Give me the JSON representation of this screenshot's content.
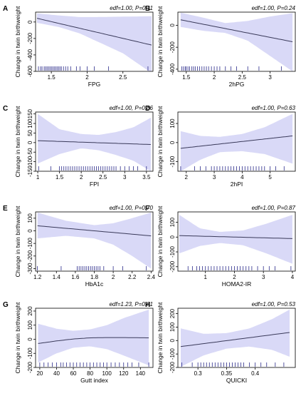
{
  "figure": {
    "ylabel": "Change in twin birthweight",
    "band_color": "#d9d9f7",
    "line_color": "#3a3a5a",
    "rug_color": "#2b2b8a"
  },
  "chart_data": [
    {
      "panel": "A",
      "type": "line",
      "stat": "edf=1.00, P=0.11",
      "xlabel": "FPG",
      "ylabel": "Change in twin birthweight",
      "xlim": [
        1.28,
        2.92
      ],
      "ylim": [
        -600,
        120
      ],
      "xticks": [
        1.5,
        2.0,
        2.5
      ],
      "yticks": [
        -600,
        -400,
        -200,
        0
      ],
      "fit": {
        "x": [
          1.3,
          2.9
        ],
        "y": [
          45,
          -280
        ]
      },
      "band": {
        "x": [
          1.3,
          1.6,
          1.9,
          2.1,
          2.5,
          2.9
        ],
        "upper": [
          105,
          80,
          60,
          60,
          65,
          70
        ],
        "lower": [
          -10,
          -60,
          -140,
          -220,
          -380,
          -620
        ]
      },
      "rug": [
        1.32,
        1.35,
        1.37,
        1.4,
        1.42,
        1.44,
        1.46,
        1.48,
        1.5,
        1.52,
        1.54,
        1.56,
        1.58,
        1.6,
        1.62,
        1.64,
        1.67,
        1.7,
        1.73,
        1.77,
        1.85,
        1.9,
        2.0,
        2.1,
        2.3,
        2.85
      ]
    },
    {
      "panel": "B",
      "type": "line",
      "stat": "edf=1.00, P=0.24",
      "xlabel": "2hPG",
      "ylabel": "Change in twin birthweight",
      "xlim": [
        1.35,
        3.45
      ],
      "ylim": [
        -420,
        120
      ],
      "xticks": [
        1.5,
        2.0,
        2.5,
        3.0
      ],
      "yticks": [
        -400,
        -200,
        0
      ],
      "fit": {
        "x": [
          1.4,
          3.4
        ],
        "y": [
          50,
          -150
        ]
      },
      "band": {
        "x": [
          1.4,
          1.8,
          2.2,
          2.6,
          3.0,
          3.4
        ],
        "upper": [
          115,
          70,
          20,
          40,
          80,
          110
        ],
        "lower": [
          -15,
          -50,
          -70,
          -140,
          -280,
          -420
        ]
      },
      "rug": [
        1.42,
        1.45,
        1.48,
        1.5,
        1.53,
        1.56,
        1.6,
        1.63,
        1.66,
        1.7,
        1.74,
        1.78,
        1.82,
        1.86,
        1.9,
        1.95,
        2.0,
        2.05,
        2.1,
        2.2,
        2.3,
        2.4,
        2.6,
        2.8,
        3.2
      ]
    },
    {
      "panel": "C",
      "type": "line",
      "stat": "edf=1.00, P=0.86",
      "xlabel": "FPI",
      "ylabel": "Change in twin birthweight",
      "xlim": [
        0.95,
        3.65
      ],
      "ylim": [
        -150,
        160
      ],
      "xticks": [
        1.0,
        1.5,
        2.0,
        2.5,
        3.0,
        3.5
      ],
      "yticks": [
        -150,
        -100,
        -50,
        0,
        50,
        100,
        150
      ],
      "fit": {
        "x": [
          1.0,
          3.6
        ],
        "y": [
          10,
          -10
        ]
      },
      "band": {
        "x": [
          1.0,
          1.5,
          2.0,
          2.4,
          2.8,
          3.2,
          3.6
        ],
        "upper": [
          150,
          70,
          45,
          40,
          55,
          80,
          130
        ],
        "lower": [
          -110,
          -60,
          -30,
          -40,
          -65,
          -95,
          -150
        ]
      },
      "rug": [
        1.02,
        1.3,
        1.5,
        1.55,
        1.6,
        1.65,
        1.7,
        1.75,
        1.8,
        1.85,
        1.9,
        1.95,
        2.0,
        2.05,
        2.1,
        2.15,
        2.2,
        2.25,
        2.3,
        2.35,
        2.4,
        2.45,
        2.5,
        2.55,
        2.6,
        2.65,
        2.7,
        2.75,
        2.8,
        2.9,
        3.0,
        3.1,
        3.2,
        3.3,
        3.5
      ]
    },
    {
      "panel": "D",
      "type": "line",
      "stat": "edf=1.00, P=0.63",
      "xlabel": "2hPI",
      "ylabel": "Change in twin birthweight",
      "xlim": [
        1.7,
        5.9
      ],
      "ylim": [
        -150,
        160
      ],
      "xticks": [
        2,
        3,
        4,
        5
      ],
      "yticks": [
        -100,
        0,
        100
      ],
      "fit": {
        "x": [
          1.8,
          5.8
        ],
        "y": [
          -30,
          35
        ]
      },
      "band": {
        "x": [
          1.8,
          2.5,
          3.2,
          4.0,
          4.8,
          5.8
        ],
        "upper": [
          60,
          35,
          30,
          45,
          80,
          150
        ],
        "lower": [
          -150,
          -90,
          -50,
          -45,
          -60,
          -110
        ]
      },
      "rug": [
        1.8,
        2.3,
        2.5,
        2.7,
        2.9,
        3.0,
        3.1,
        3.2,
        3.3,
        3.4,
        3.5,
        3.6,
        3.7,
        3.8,
        3.9,
        4.0,
        4.1,
        4.2,
        4.3,
        4.4,
        4.5,
        4.6,
        4.7,
        4.8,
        5.0,
        5.2,
        5.5
      ]
    },
    {
      "panel": "E",
      "type": "line",
      "stat": "edf=1.00, P=0.70",
      "xlabel": "HbA1c",
      "ylabel": "Change in twin birthweight",
      "xlim": [
        1.18,
        2.42
      ],
      "ylim": [
        -320,
        150
      ],
      "xticks": [
        1.2,
        1.4,
        1.6,
        1.8,
        2.0,
        2.2,
        2.4
      ],
      "yticks": [
        -300,
        -200,
        -100,
        0,
        100
      ],
      "fit": {
        "x": [
          1.2,
          2.4
        ],
        "y": [
          40,
          -40
        ]
      },
      "band": {
        "x": [
          1.2,
          1.5,
          1.8,
          2.0,
          2.2,
          2.4
        ],
        "upper": [
          145,
          80,
          45,
          60,
          100,
          145
        ],
        "lower": [
          -60,
          -40,
          -60,
          -110,
          -200,
          -300
        ]
      },
      "rug": [
        1.2,
        1.45,
        1.62,
        1.64,
        1.66,
        1.68,
        1.7,
        1.72,
        1.74,
        1.76,
        1.78,
        1.8,
        1.82,
        1.84,
        1.86,
        1.9,
        2.0,
        2.1,
        2.35
      ]
    },
    {
      "panel": "F",
      "type": "line",
      "stat": "edf=1.00, P=0.87",
      "xlabel": "HOMA2-IR",
      "ylabel": "Change in twin birthweight",
      "xlim": [
        0.05,
        4.1
      ],
      "ylim": [
        -230,
        170
      ],
      "xticks": [
        1,
        2,
        3,
        4
      ],
      "yticks": [
        -200,
        -100,
        0,
        100
      ],
      "fit": {
        "x": [
          0.1,
          4.0
        ],
        "y": [
          10,
          -10
        ]
      },
      "band": {
        "x": [
          0.1,
          0.8,
          1.5,
          2.3,
          3.1,
          4.0
        ],
        "upper": [
          150,
          60,
          35,
          45,
          90,
          150
        ],
        "lower": [
          -110,
          -60,
          -40,
          -55,
          -110,
          -180
        ]
      },
      "rug": [
        0.4,
        0.55,
        0.7,
        0.8,
        0.9,
        1.0,
        1.1,
        1.2,
        1.3,
        1.4,
        1.5,
        1.6,
        1.7,
        1.8,
        1.9,
        2.0,
        2.1,
        2.2,
        2.3,
        2.4,
        2.5,
        2.6,
        2.8,
        3.0,
        3.2,
        3.4,
        3.95
      ]
    },
    {
      "panel": "G",
      "type": "line",
      "stat": "edf=1.23, P=0.81",
      "xlabel": "Gutt index",
      "ylabel": "Change in twin birthweight",
      "xlim": [
        15,
        155
      ],
      "ylim": [
        -200,
        220
      ],
      "xticks": [
        20,
        40,
        60,
        80,
        100,
        120,
        140
      ],
      "yticks": [
        -200,
        -100,
        0,
        100,
        200
      ],
      "fit": {
        "x": [
          18,
          40,
          60,
          80,
          100,
          120,
          150
        ],
        "y": [
          -30,
          -12,
          2,
          10,
          12,
          12,
          10
        ]
      },
      "band": {
        "x": [
          18,
          40,
          60,
          80,
          100,
          120,
          150
        ],
        "upper": [
          110,
          75,
          60,
          70,
          100,
          150,
          210
        ],
        "lower": [
          -165,
          -100,
          -60,
          -50,
          -70,
          -115,
          -185
        ]
      },
      "rug": [
        20,
        25,
        30,
        35,
        40,
        45,
        48,
        52,
        56,
        60,
        64,
        68,
        72,
        76,
        80,
        84,
        88,
        92,
        96,
        100,
        105,
        110,
        115,
        120,
        125,
        130,
        138,
        150
      ]
    },
    {
      "panel": "H",
      "type": "line",
      "stat": "edf=1.00, P=0.53",
      "xlabel": "QUICKI",
      "ylabel": "Change in twin birthweight",
      "xlim": [
        0.265,
        0.47
      ],
      "ylim": [
        -200,
        240
      ],
      "xticks": [
        0.3,
        0.35,
        0.4
      ],
      "yticks": [
        -200,
        -100,
        0,
        100,
        200
      ],
      "fit": {
        "x": [
          0.27,
          0.46
        ],
        "y": [
          -45,
          60
        ]
      },
      "band": {
        "x": [
          0.27,
          0.31,
          0.35,
          0.39,
          0.43,
          0.46
        ],
        "upper": [
          90,
          50,
          55,
          90,
          160,
          230
        ],
        "lower": [
          -195,
          -110,
          -60,
          -45,
          -70,
          -120
        ]
      },
      "rug": [
        0.272,
        0.29,
        0.3,
        0.305,
        0.31,
        0.315,
        0.32,
        0.325,
        0.33,
        0.335,
        0.34,
        0.345,
        0.35,
        0.355,
        0.36,
        0.365,
        0.37,
        0.375,
        0.38,
        0.39,
        0.4,
        0.41,
        0.42,
        0.435,
        0.45
      ]
    }
  ]
}
